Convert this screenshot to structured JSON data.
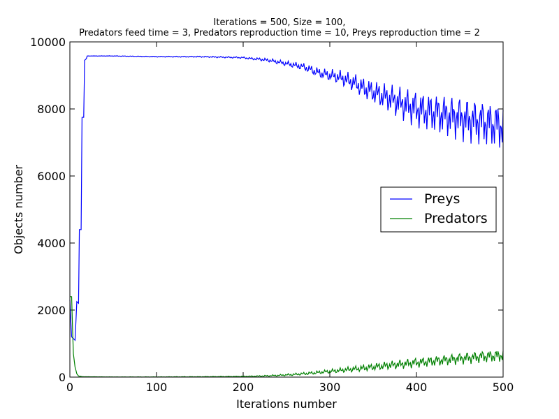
{
  "chart_data": {
    "type": "line",
    "title_line1": "Iterations = 500, Size = 100,",
    "title_line2": " Predators feed time = 3, Predators reproduction time = 10,  Preys reproduction time = 2",
    "xlabel": "Iterations number",
    "ylabel": "Objects number",
    "xlim": [
      0,
      500
    ],
    "ylim": [
      0,
      10000
    ],
    "xticks": [
      "0",
      "100",
      "200",
      "300",
      "400",
      "500"
    ],
    "yticks": [
      "0",
      "2000",
      "4000",
      "6000",
      "8000",
      "10000"
    ],
    "legend_placement": "center-right",
    "series": [
      {
        "name": "Preys",
        "color": "#0000ff",
        "points": [
          [
            0,
            2300
          ],
          [
            2,
            1200
          ],
          [
            4,
            1150
          ],
          [
            6,
            1100
          ],
          [
            8,
            2250
          ],
          [
            10,
            2200
          ],
          [
            11,
            4400
          ],
          [
            13,
            4400
          ],
          [
            14,
            7750
          ],
          [
            16,
            7750
          ],
          [
            17,
            9450
          ],
          [
            19,
            9500
          ],
          [
            20,
            9580
          ],
          [
            30,
            9580
          ],
          [
            50,
            9580
          ],
          [
            100,
            9560
          ],
          [
            150,
            9560
          ],
          [
            200,
            9530
          ],
          [
            210,
            9500
          ],
          [
            220,
            9480
          ],
          [
            230,
            9450
          ],
          [
            240,
            9400
          ],
          [
            250,
            9350
          ],
          [
            260,
            9300
          ],
          [
            270,
            9250
          ],
          [
            280,
            9150
          ],
          [
            290,
            9050
          ],
          [
            300,
            9000
          ],
          [
            310,
            8950
          ],
          [
            320,
            8850
          ],
          [
            330,
            8750
          ],
          [
            340,
            8600
          ],
          [
            350,
            8500
          ],
          [
            360,
            8400
          ],
          [
            370,
            8300
          ],
          [
            380,
            8200
          ],
          [
            390,
            8100
          ],
          [
            400,
            8000
          ],
          [
            410,
            7950
          ],
          [
            420,
            7900
          ],
          [
            430,
            7850
          ],
          [
            440,
            7800
          ],
          [
            450,
            7750
          ],
          [
            460,
            7700
          ],
          [
            470,
            7650
          ],
          [
            480,
            7600
          ],
          [
            490,
            7550
          ],
          [
            500,
            7500
          ]
        ],
        "oscillation_amplitude": [
          [
            0,
            0
          ],
          [
            200,
            50
          ],
          [
            250,
            150
          ],
          [
            300,
            350
          ],
          [
            350,
            700
          ],
          [
            400,
            1100
          ],
          [
            450,
            1300
          ],
          [
            500,
            1400
          ]
        ]
      },
      {
        "name": "Predators",
        "color": "#008000",
        "points": [
          [
            0,
            2400
          ],
          [
            2,
            2400
          ],
          [
            4,
            700
          ],
          [
            6,
            300
          ],
          [
            8,
            100
          ],
          [
            10,
            30
          ],
          [
            15,
            10
          ],
          [
            50,
            5
          ],
          [
            100,
            5
          ],
          [
            150,
            10
          ],
          [
            200,
            20
          ],
          [
            220,
            30
          ],
          [
            240,
            50
          ],
          [
            260,
            80
          ],
          [
            280,
            120
          ],
          [
            300,
            170
          ],
          [
            320,
            220
          ],
          [
            340,
            270
          ],
          [
            360,
            330
          ],
          [
            380,
            380
          ],
          [
            400,
            430
          ],
          [
            420,
            480
          ],
          [
            440,
            530
          ],
          [
            460,
            580
          ],
          [
            480,
            620
          ],
          [
            500,
            650
          ]
        ],
        "oscillation_amplitude": [
          [
            0,
            0
          ],
          [
            200,
            20
          ],
          [
            250,
            60
          ],
          [
            300,
            120
          ],
          [
            350,
            220
          ],
          [
            400,
            300
          ],
          [
            450,
            340
          ],
          [
            500,
            380
          ]
        ]
      }
    ]
  }
}
